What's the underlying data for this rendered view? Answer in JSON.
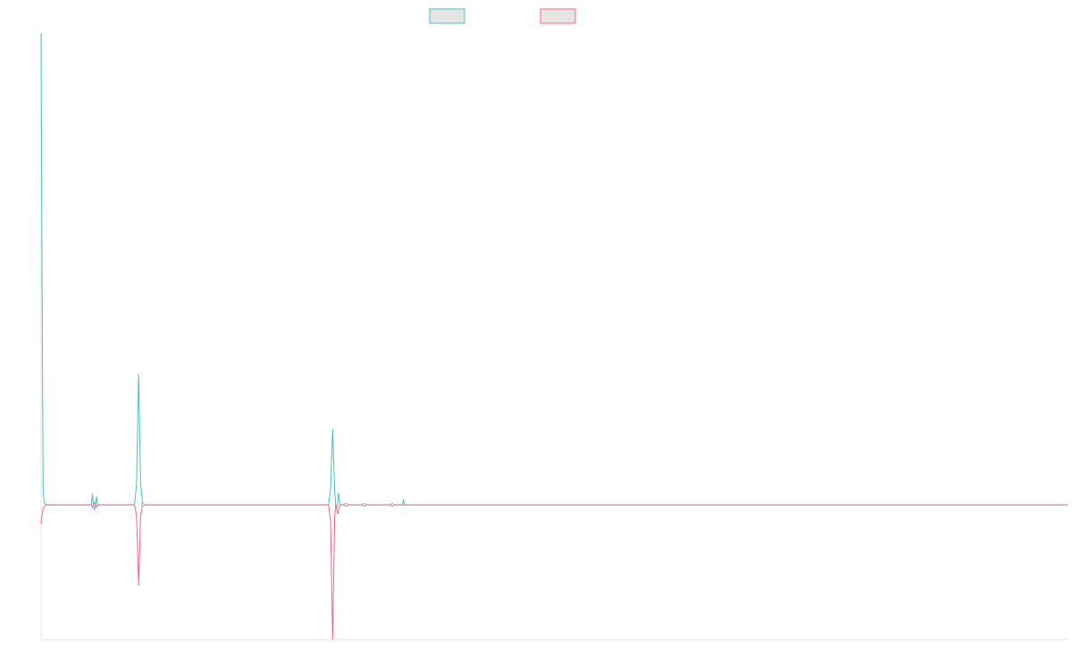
{
  "chart_data": {
    "type": "line",
    "title": "",
    "xlabel": "",
    "ylabel": "",
    "grid": false,
    "legend_position": "top-center",
    "xlim": [
      0,
      1000
    ],
    "ylim": [
      -100,
      350
    ],
    "colors": {
      "series_1": "#4bc0c0",
      "series_2": "#ff6384",
      "legend_fill": "#e5e5e5",
      "axis": "#e6e6e6"
    },
    "series": [
      {
        "name": "",
        "color_key": "series_1",
        "points": [
          [
            0,
            350
          ],
          [
            1,
            160
          ],
          [
            2,
            10
          ],
          [
            3,
            2
          ],
          [
            5,
            0
          ],
          [
            49,
            0
          ],
          [
            50,
            8
          ],
          [
            51,
            0
          ],
          [
            52,
            -4
          ],
          [
            53,
            0
          ],
          [
            54,
            6
          ],
          [
            55,
            0
          ],
          [
            91,
            0
          ],
          [
            93,
            15
          ],
          [
            95,
            97
          ],
          [
            97,
            15
          ],
          [
            99,
            0
          ],
          [
            280,
            0
          ],
          [
            282,
            12
          ],
          [
            284,
            56
          ],
          [
            286,
            10
          ],
          [
            287,
            0
          ],
          [
            288,
            -3
          ],
          [
            289,
            2
          ],
          [
            290,
            9
          ],
          [
            291,
            0
          ],
          [
            352,
            0
          ],
          [
            353,
            4
          ],
          [
            354,
            0
          ],
          [
            1000,
            0
          ]
        ]
      },
      {
        "name": "",
        "color_key": "series_2",
        "points": [
          [
            0,
            -14
          ],
          [
            1,
            -8
          ],
          [
            2,
            -3
          ],
          [
            3,
            -1
          ],
          [
            5,
            0
          ],
          [
            49,
            0
          ],
          [
            50,
            -2
          ],
          [
            51,
            0
          ],
          [
            52,
            2
          ],
          [
            53,
            0
          ],
          [
            54,
            -2
          ],
          [
            55,
            0
          ],
          [
            91,
            0
          ],
          [
            93,
            -8
          ],
          [
            95,
            -60
          ],
          [
            97,
            -8
          ],
          [
            99,
            0
          ],
          [
            280,
            0
          ],
          [
            282,
            -12
          ],
          [
            284,
            -100
          ],
          [
            286,
            -10
          ],
          [
            287,
            0
          ],
          [
            289,
            -7
          ],
          [
            291,
            0
          ],
          [
            1000,
            0
          ]
        ]
      }
    ]
  }
}
